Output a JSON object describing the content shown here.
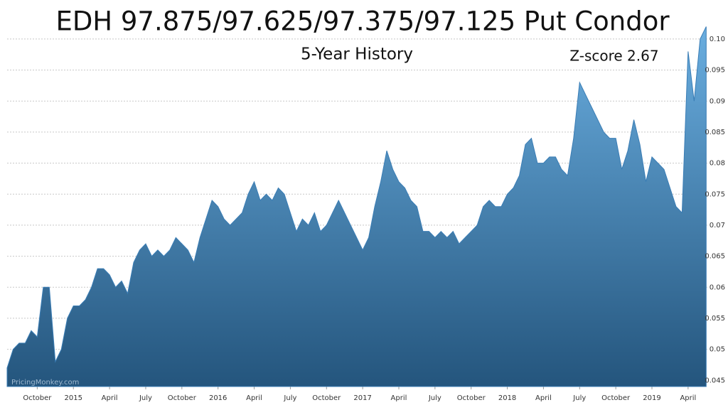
{
  "chart_data": {
    "type": "area",
    "title": "EDH 97.875/97.625/97.375/97.125 Put Condor",
    "subtitle": "5-Year History",
    "annotation": "Z-score 2.67",
    "watermark": "PricingMonkey.com",
    "color": "#3a7db5",
    "grid": true,
    "x": [
      -2.5,
      -2,
      -1.5,
      -1,
      -0.5,
      0,
      0.5,
      1,
      1.5,
      2,
      2.5,
      3,
      3.5,
      4,
      4.5,
      5,
      5.5,
      6,
      6.5,
      7,
      7.5,
      8,
      8.5,
      9,
      9.5,
      10,
      10.5,
      11,
      11.5,
      12,
      12.5,
      13,
      13.5,
      14,
      14.5,
      15,
      15.5,
      16,
      16.5,
      17,
      17.5,
      18,
      18.5,
      19,
      19.5,
      20,
      20.5,
      21,
      21.5,
      22,
      22.5,
      23,
      23.5,
      24,
      24.5,
      25,
      25.5,
      26,
      26.5,
      27,
      27.5,
      28,
      28.5,
      29,
      29.5,
      30,
      30.5,
      31,
      31.5,
      32,
      32.5,
      33,
      33.5,
      34,
      34.5,
      35,
      35.5,
      36,
      36.5,
      37,
      37.5,
      38,
      38.5,
      39,
      39.5,
      40,
      40.5,
      41,
      41.5,
      42,
      42.5,
      43,
      43.5,
      44,
      44.5,
      45,
      45.5,
      46,
      46.5,
      47,
      47.5,
      48,
      48.5,
      49,
      49.5,
      50,
      50.5,
      51,
      51.5,
      52,
      52.5,
      53,
      53.5,
      54,
      54.5,
      55,
      55.5
    ],
    "values": [
      0.047,
      0.05,
      0.051,
      0.051,
      0.053,
      0.052,
      0.06,
      0.06,
      0.048,
      0.05,
      0.055,
      0.057,
      0.057,
      0.058,
      0.06,
      0.063,
      0.063,
      0.062,
      0.06,
      0.061,
      0.059,
      0.064,
      0.066,
      0.067,
      0.065,
      0.066,
      0.065,
      0.066,
      0.068,
      0.067,
      0.066,
      0.064,
      0.068,
      0.071,
      0.074,
      0.073,
      0.071,
      0.07,
      0.071,
      0.072,
      0.075,
      0.077,
      0.074,
      0.075,
      0.074,
      0.076,
      0.075,
      0.072,
      0.069,
      0.071,
      0.07,
      0.072,
      0.069,
      0.07,
      0.072,
      0.074,
      0.072,
      0.07,
      0.068,
      0.066,
      0.068,
      0.073,
      0.077,
      0.082,
      0.079,
      0.077,
      0.076,
      0.074,
      0.073,
      0.069,
      0.069,
      0.068,
      0.069,
      0.068,
      0.069,
      0.067,
      0.068,
      0.069,
      0.07,
      0.073,
      0.074,
      0.073,
      0.073,
      0.075,
      0.076,
      0.078,
      0.083,
      0.084,
      0.08,
      0.08,
      0.081,
      0.081,
      0.079,
      0.078,
      0.084,
      0.093,
      0.091,
      0.089,
      0.087,
      0.085,
      0.084,
      0.084,
      0.079,
      0.082,
      0.087,
      0.083,
      0.077,
      0.081,
      0.08,
      0.079,
      0.076,
      0.073,
      0.072,
      0.098,
      0.09,
      0.1,
      0.102
    ],
    "xlim": [
      -2.5,
      55.6
    ],
    "xticks": [
      {
        "value": 0,
        "label": "October"
      },
      {
        "value": 3,
        "label": "2015"
      },
      {
        "value": 6,
        "label": "April"
      },
      {
        "value": 9,
        "label": "July"
      },
      {
        "value": 12,
        "label": "October"
      },
      {
        "value": 15,
        "label": "2016"
      },
      {
        "value": 18,
        "label": "April"
      },
      {
        "value": 21,
        "label": "July"
      },
      {
        "value": 24,
        "label": "October"
      },
      {
        "value": 27,
        "label": "2017"
      },
      {
        "value": 30,
        "label": "April"
      },
      {
        "value": 33,
        "label": "July"
      },
      {
        "value": 36,
        "label": "October"
      },
      {
        "value": 39,
        "label": "2018"
      },
      {
        "value": 42,
        "label": "April"
      },
      {
        "value": 45,
        "label": "July"
      },
      {
        "value": 48,
        "label": "October"
      },
      {
        "value": 51,
        "label": "2019"
      },
      {
        "value": 54,
        "label": "April"
      }
    ],
    "ylim": [
      0.044,
      0.104
    ],
    "yticks": [
      0.045,
      0.05,
      0.055,
      0.06,
      0.065,
      0.07,
      0.075,
      0.08,
      0.085,
      0.09,
      0.095,
      {
        "value": 0.1,
        "label": "0.10"
      }
    ]
  }
}
